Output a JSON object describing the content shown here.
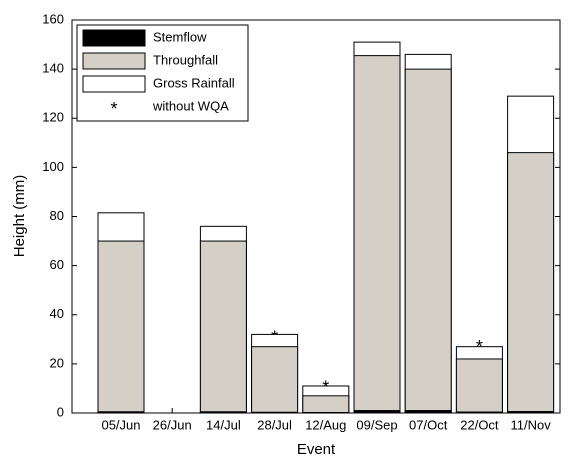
{
  "chart_data": {
    "type": "bar",
    "overlay": true,
    "x_label": "Event",
    "y_label": "Height (mm)",
    "categories": [
      "05/Jun",
      "26/Jun",
      "14/Jul",
      "28/Jul",
      "12/Aug",
      "09/Sep",
      "07/Oct",
      "22/Oct",
      "11/Nov"
    ],
    "series": [
      {
        "name": "Stemflow",
        "color": "#000000",
        "values": [
          0.5,
          null,
          0.5,
          0.3,
          0.2,
          1,
          1,
          0.4,
          0.6
        ]
      },
      {
        "name": "Throughfall",
        "color": "#d4d0c8",
        "values": [
          70,
          null,
          70,
          27,
          7,
          145.5,
          140,
          22,
          106
        ]
      },
      {
        "name": "Gross Rainfall",
        "color": "#ffffff",
        "values": [
          81.5,
          null,
          76,
          32,
          11,
          151,
          146,
          27,
          129
        ]
      },
      {
        "name": "without WQA",
        "color": "#000000",
        "marker": "*",
        "values": [
          null,
          null,
          null,
          31.5,
          11,
          null,
          null,
          27.5,
          null
        ]
      }
    ],
    "ylim": [
      0,
      160
    ],
    "yticks": [
      0,
      20,
      40,
      60,
      80,
      100,
      120,
      140,
      160
    ],
    "grid": false,
    "legend": "upper left"
  }
}
